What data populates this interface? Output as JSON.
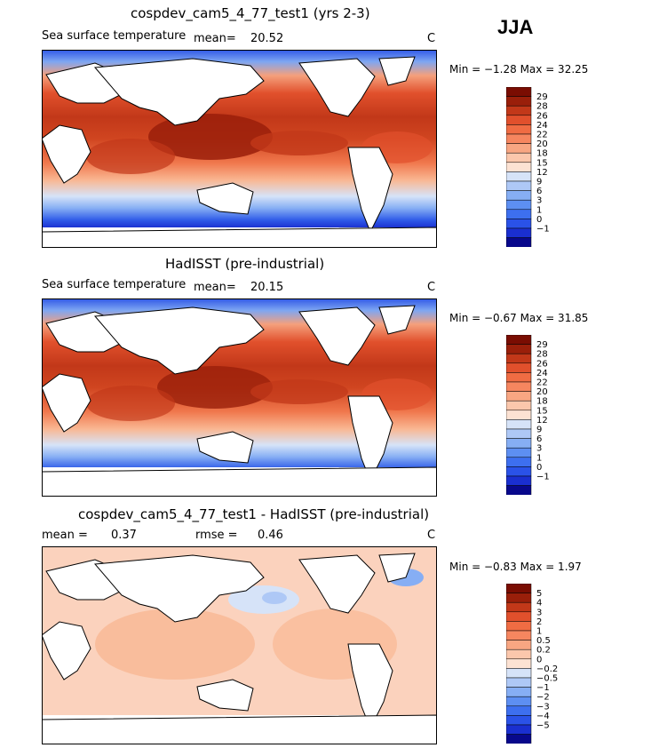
{
  "season": "JJA",
  "colors": {
    "land": "#ffffff",
    "coast": "#000000",
    "sst_scale": [
      "#08088c",
      "#1a2fd0",
      "#2a52e8",
      "#3d6fef",
      "#5d8ff2",
      "#86aef4",
      "#aec8f6",
      "#d6e3f8",
      "#fce2d3",
      "#fbc7ac",
      "#f8a682",
      "#f6865f",
      "#f06c43",
      "#e1502c",
      "#c23819",
      "#9a1f0a",
      "#7a0d02"
    ],
    "diff_scale": [
      "#08088c",
      "#1a2fd0",
      "#2a52e8",
      "#3d6fef",
      "#5d8ff2",
      "#86aef4",
      "#aec8f6",
      "#d6e3f8",
      "#fce2d3",
      "#fbc7ac",
      "#f8a682",
      "#f6865f",
      "#f06c43",
      "#e1502c",
      "#c23819",
      "#9a1f0a",
      "#7a0d02"
    ]
  },
  "panels": [
    {
      "title": "cospdev_cam5_4_77_test1 (yrs 2-3)",
      "left_text": "Sea surface temperature",
      "mean_label": "mean=",
      "mean_value": "20.52",
      "unit": "C",
      "range_text": "Min =   −1.28  Max =   32.25",
      "legend_labels": [
        "29",
        "28",
        "26",
        "24",
        "22",
        "20",
        "18",
        "15",
        "12",
        "9",
        "6",
        "3",
        "1",
        "0",
        "−1"
      ]
    },
    {
      "title": "HadISST (pre-industrial)",
      "left_text": "Sea surface temperature",
      "mean_label": "mean=",
      "mean_value": "20.15",
      "unit": "C",
      "range_text": "Min =   −0.67  Max =   31.85",
      "legend_labels": [
        "29",
        "28",
        "26",
        "24",
        "22",
        "20",
        "18",
        "15",
        "12",
        "9",
        "6",
        "3",
        "1",
        "0",
        "−1"
      ]
    },
    {
      "title": "cospdev_cam5_4_77_test1 - HadISST (pre-industrial)",
      "left_text": "mean =",
      "mean_value": "0.37",
      "rmse_label": "rmse =",
      "rmse_value": "0.46",
      "unit": "C",
      "range_text": "Min =   −0.83  Max =    1.97",
      "legend_labels": [
        "5",
        "4",
        "3",
        "2",
        "1",
        "0.5",
        "0.2",
        "0",
        "−0.2",
        "−0.5",
        "−1",
        "−2",
        "−3",
        "−4",
        "−5"
      ]
    }
  ]
}
